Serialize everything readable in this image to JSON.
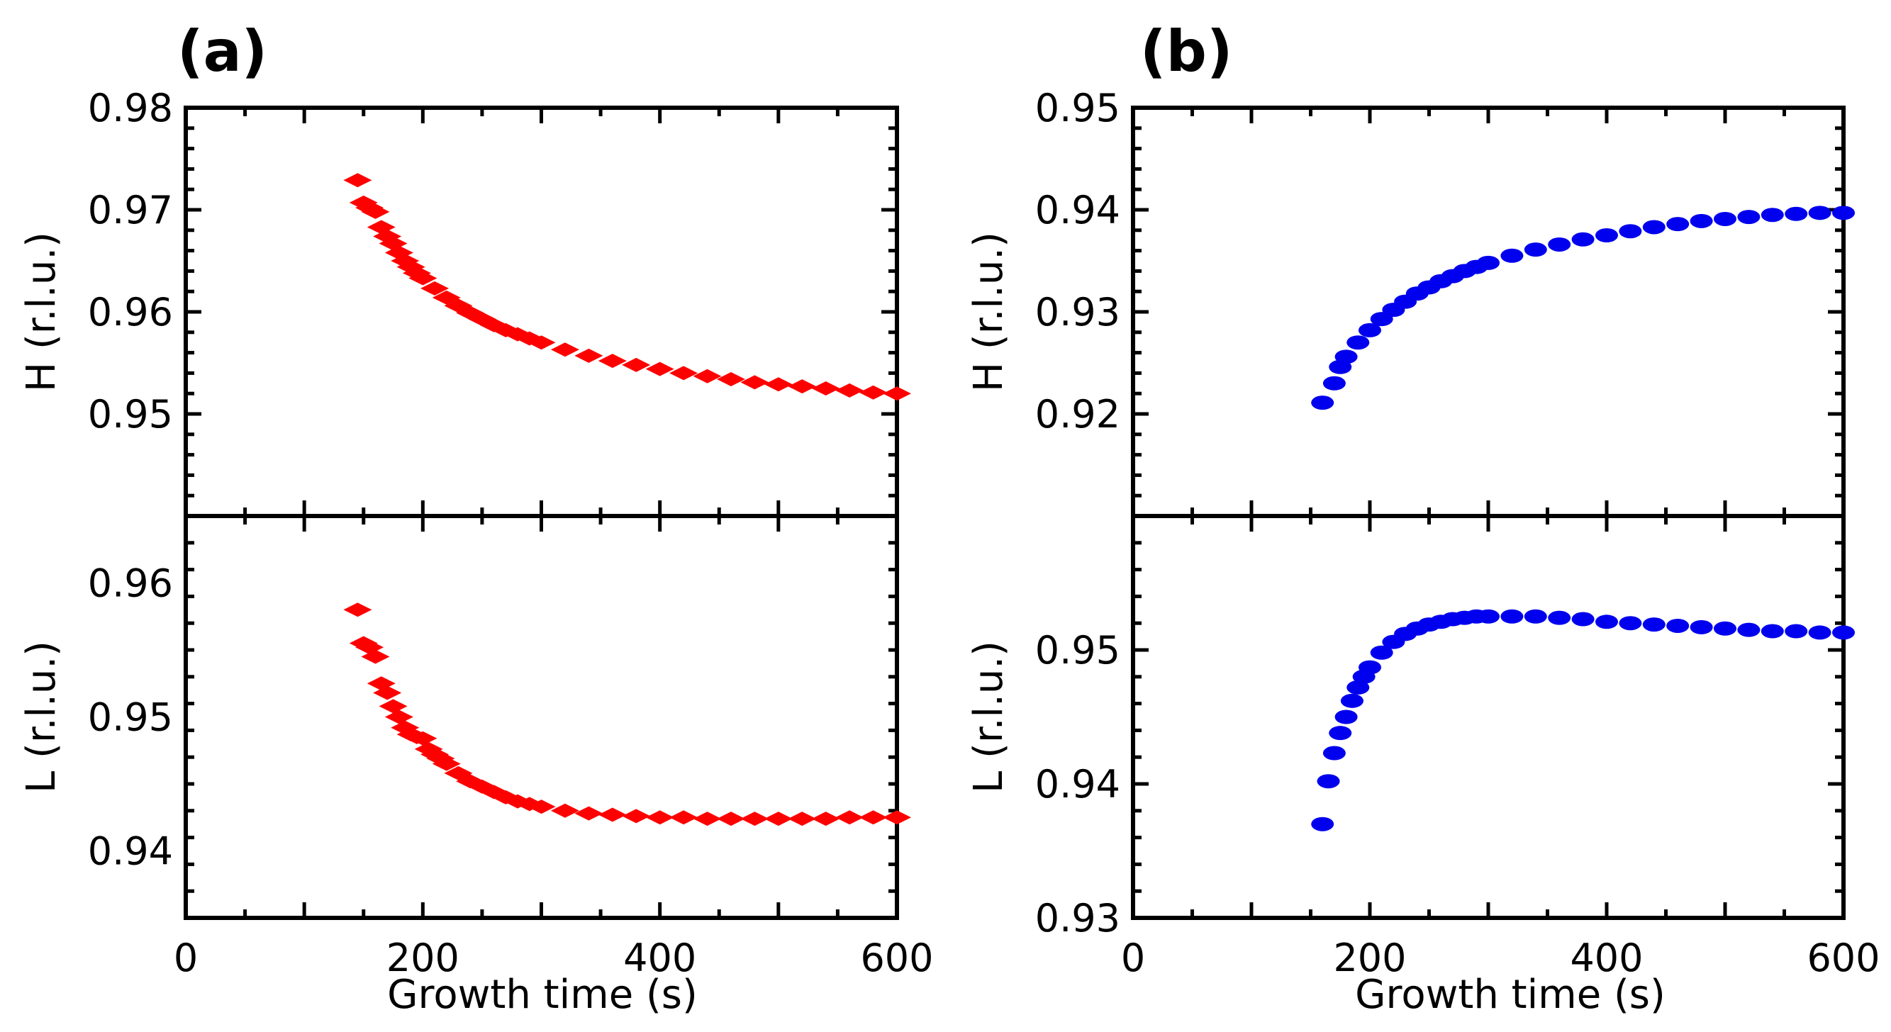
{
  "panels": [
    {
      "label": "(a)",
      "xlabel": "Growth time (s)",
      "xlim": [
        0,
        600
      ],
      "xticks": [
        0,
        200,
        400,
        600
      ],
      "color": "#ff0000",
      "marker": "diamond"
    },
    {
      "label": "(b)",
      "xlabel": "Growth time (s)",
      "xlim": [
        0,
        600
      ],
      "xticks": [
        0,
        200,
        400,
        600
      ],
      "color": "#0000ee",
      "marker": "ellipse"
    }
  ],
  "chart_data": [
    {
      "type": "scatter",
      "panel": "(a)",
      "position": "top",
      "xlabel": "",
      "ylabel": "H (r.l.u.)",
      "xlim": [
        0,
        600
      ],
      "ylim": [
        0.94,
        0.98
      ],
      "yticks": [
        "0.95",
        "0.96",
        "0.97",
        "0.98"
      ],
      "x": [
        145,
        150,
        155,
        160,
        165,
        170,
        175,
        180,
        185,
        190,
        195,
        200,
        210,
        220,
        230,
        240,
        250,
        260,
        270,
        280,
        290,
        300,
        320,
        340,
        360,
        380,
        400,
        420,
        440,
        460,
        480,
        500,
        520,
        540,
        560,
        580,
        600
      ],
      "y": [
        0.9729,
        0.9707,
        0.9702,
        0.9698,
        0.9683,
        0.9674,
        0.9667,
        0.9658,
        0.965,
        0.9644,
        0.9638,
        0.9633,
        0.9623,
        0.9614,
        0.9606,
        0.9599,
        0.9593,
        0.9587,
        0.9582,
        0.9578,
        0.9574,
        0.957,
        0.9563,
        0.9557,
        0.9552,
        0.9548,
        0.9544,
        0.954,
        0.9537,
        0.9534,
        0.9531,
        0.9529,
        0.9527,
        0.9525,
        0.9523,
        0.9521,
        0.952
      ]
    },
    {
      "type": "scatter",
      "panel": "(a)",
      "position": "bottom",
      "xlabel": "Growth time (s)",
      "ylabel": "L (r.l.u.)",
      "xlim": [
        0,
        600
      ],
      "ylim": [
        0.935,
        0.965
      ],
      "yticks": [
        "0.94",
        "0.95",
        "0.96"
      ],
      "x": [
        145,
        150,
        155,
        160,
        165,
        170,
        175,
        180,
        185,
        190,
        195,
        200,
        205,
        210,
        215,
        220,
        230,
        240,
        250,
        260,
        270,
        280,
        290,
        300,
        320,
        340,
        360,
        380,
        400,
        420,
        440,
        460,
        480,
        500,
        520,
        540,
        560,
        580,
        600
      ],
      "y": [
        0.958,
        0.9555,
        0.9552,
        0.9545,
        0.9525,
        0.9518,
        0.9508,
        0.95,
        0.9492,
        0.9487,
        0.9485,
        0.9484,
        0.9476,
        0.9472,
        0.9469,
        0.9465,
        0.9458,
        0.9452,
        0.9448,
        0.9444,
        0.944,
        0.9437,
        0.9435,
        0.9433,
        0.943,
        0.9428,
        0.9427,
        0.9426,
        0.9425,
        0.9425,
        0.9424,
        0.9424,
        0.9424,
        0.9424,
        0.9424,
        0.9424,
        0.9425,
        0.9425,
        0.9425
      ]
    },
    {
      "type": "scatter",
      "panel": "(b)",
      "position": "top",
      "xlabel": "",
      "ylabel": "H (r.l.u.)",
      "xlim": [
        0,
        600
      ],
      "ylim": [
        0.91,
        0.95
      ],
      "yticks": [
        "0.92",
        "0.93",
        "0.94",
        "0.95"
      ],
      "x": [
        160,
        170,
        175,
        180,
        190,
        200,
        210,
        220,
        230,
        240,
        250,
        260,
        270,
        280,
        290,
        300,
        320,
        340,
        360,
        380,
        400,
        420,
        440,
        460,
        480,
        500,
        520,
        540,
        560,
        580,
        600
      ],
      "y": [
        0.9211,
        0.923,
        0.9246,
        0.9256,
        0.927,
        0.9282,
        0.9293,
        0.9302,
        0.931,
        0.9318,
        0.9324,
        0.933,
        0.9335,
        0.934,
        0.9344,
        0.9348,
        0.9355,
        0.9361,
        0.9366,
        0.9371,
        0.9375,
        0.9379,
        0.9383,
        0.9386,
        0.9389,
        0.9391,
        0.9393,
        0.9395,
        0.9396,
        0.9397,
        0.9397
      ]
    },
    {
      "type": "scatter",
      "panel": "(b)",
      "position": "bottom",
      "xlabel": "Growth time (s)",
      "ylabel": "L (r.l.u.)",
      "xlim": [
        0,
        600
      ],
      "ylim": [
        0.93,
        0.96
      ],
      "yticks": [
        "0.93",
        "0.94",
        "0.95"
      ],
      "x": [
        160,
        165,
        170,
        175,
        180,
        185,
        190,
        195,
        200,
        210,
        220,
        230,
        240,
        250,
        260,
        270,
        280,
        290,
        300,
        320,
        340,
        360,
        380,
        400,
        420,
        440,
        460,
        480,
        500,
        520,
        540,
        560,
        580,
        600
      ],
      "y": [
        0.937,
        0.9402,
        0.9423,
        0.9438,
        0.945,
        0.9462,
        0.9472,
        0.948,
        0.9487,
        0.9498,
        0.9506,
        0.9512,
        0.9516,
        0.9519,
        0.9521,
        0.9523,
        0.9524,
        0.9525,
        0.9525,
        0.9525,
        0.9525,
        0.9524,
        0.9523,
        0.9521,
        0.952,
        0.9519,
        0.9518,
        0.9517,
        0.9516,
        0.9515,
        0.9514,
        0.9514,
        0.9513,
        0.9513
      ]
    }
  ]
}
